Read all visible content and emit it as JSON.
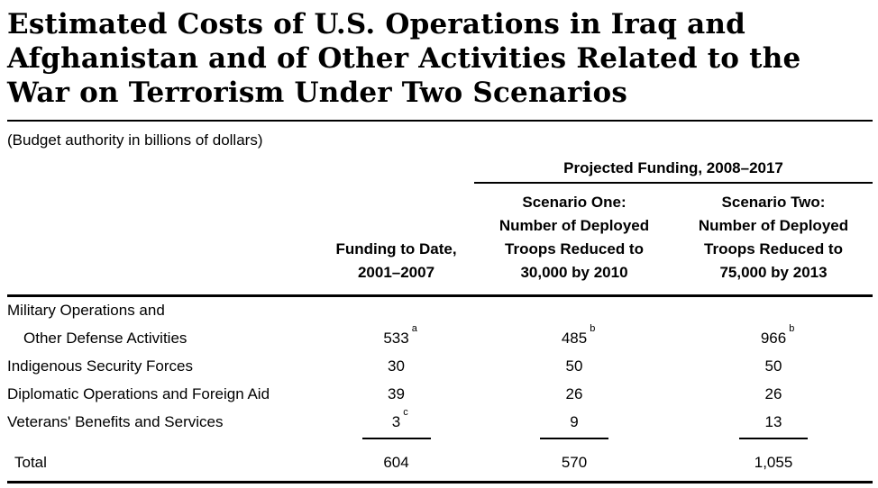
{
  "title": "Estimated Costs of U.S. Operations in Iraq and\nAfghanistan and of Other Activities Related to the\nWar on Terrorism Under Two Scenarios",
  "subtitle": "(Budget authority in billions of dollars)",
  "table": {
    "group_header": "Projected Funding, 2008–2017",
    "columns": [
      "Funding to Date,\n2001–2007",
      "Scenario One:\nNumber of Deployed\nTroops Reduced to\n30,000 by 2010",
      "Scenario Two:\nNumber of Deployed\nTroops Reduced to\n75,000 by 2013"
    ],
    "rows": [
      {
        "label_line1": "Military Operations and",
        "label_line2": "Other Defense Activities",
        "values": [
          "533",
          "485",
          "966"
        ],
        "sups": [
          "a",
          "b",
          "b"
        ]
      },
      {
        "label": "Indigenous Security Forces",
        "values": [
          "30",
          "50",
          "50"
        ],
        "sups": [
          "",
          "",
          ""
        ]
      },
      {
        "label": "Diplomatic Operations and Foreign Aid",
        "values": [
          "39",
          "26",
          "26"
        ],
        "sups": [
          "",
          "",
          ""
        ]
      },
      {
        "label": "Veterans' Benefits and Services",
        "values": [
          "3",
          "9",
          "13"
        ],
        "sups": [
          "c",
          "",
          ""
        ]
      }
    ],
    "total_row": {
      "label": "Total",
      "values": [
        "604",
        "570",
        "1,055"
      ]
    }
  }
}
